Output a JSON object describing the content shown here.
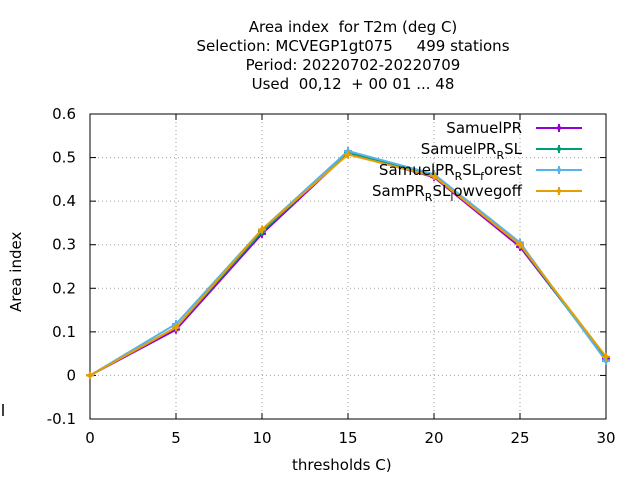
{
  "chart_data": {
    "type": "line",
    "title_lines": [
      "Area index  for T2m (deg C)",
      "Selection: MCVEGP1gt075     499 stations",
      "Period: 20220702-20220709",
      "Used  00,12  + 00 01 ... 48"
    ],
    "xlabel": "thresholds C)",
    "ylabel": "Area index",
    "x": [
      0,
      5,
      10,
      15,
      20,
      25,
      30
    ],
    "xlim": [
      0,
      30
    ],
    "ylim": [
      -0.1,
      0.6
    ],
    "xticks": [
      "0",
      "5",
      "10",
      "15",
      "20",
      "25",
      "30"
    ],
    "yticks": [
      "-0.1",
      "0",
      "0.1",
      "0.2",
      "0.3",
      "0.4",
      "0.5",
      "0.6"
    ],
    "grid": true,
    "legend_position": "top-right",
    "series": [
      {
        "name": "SamuelPR",
        "label_html": "SamuelPR",
        "color": "#9400d3",
        "values": [
          0.0,
          0.105,
          0.325,
          0.51,
          0.455,
          0.295,
          0.04
        ]
      },
      {
        "name": "SamuelPR_R SL",
        "label_main": "SamuelPR",
        "label_sub": "R",
        "label_tail": "SL",
        "color": "#009e73",
        "values": [
          0.0,
          0.11,
          0.33,
          0.512,
          0.46,
          0.3,
          0.035
        ]
      },
      {
        "name": "SamuelPR_R SL_forest",
        "label_main": "SamuelPR",
        "label_sub": "R",
        "label_mid": "SL",
        "label_sub2": "f",
        "label_tail": "orest",
        "color": "#56b4e9",
        "values": [
          0.0,
          0.118,
          0.335,
          0.515,
          0.462,
          0.305,
          0.033
        ]
      },
      {
        "name": "SamPR_R SL_lowvegoff",
        "label_main": "SamPR",
        "label_sub": "R",
        "label_mid": "SL",
        "label_sub2": "l",
        "label_tail": "owvegoff",
        "color": "#e69f00",
        "values": [
          0.0,
          0.11,
          0.335,
          0.507,
          0.457,
          0.3,
          0.043
        ]
      }
    ]
  }
}
